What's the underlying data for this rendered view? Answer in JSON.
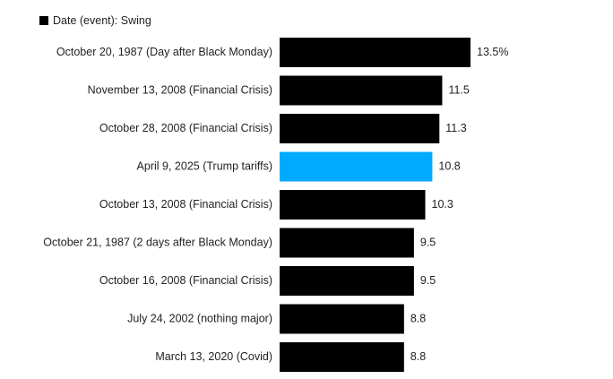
{
  "legend": {
    "label": "Date (event): Swing"
  },
  "colors": {
    "default": "#000000",
    "highlight": "#00aaff"
  },
  "chart_data": {
    "type": "bar",
    "orientation": "horizontal",
    "categories": [
      "October 20, 1987 (Day after Black Monday)",
      "November 13, 2008 (Financial Crisis)",
      "October 28, 2008 (Financial Crisis)",
      "April 9, 2025 (Trump tariffs)",
      "October 13, 2008 (Financial Crisis)",
      "October 21, 1987 (2 days after Black Monday)",
      "October 16, 2008 (Financial Crisis)",
      "July 24, 2002 (nothing major)",
      "March 13, 2020 (Covid)"
    ],
    "values": [
      13.5,
      11.5,
      11.3,
      10.8,
      10.3,
      9.5,
      9.5,
      8.8,
      8.8
    ],
    "value_labels": [
      "13.5%",
      "11.5",
      "11.3",
      "10.8",
      "10.3",
      "9.5",
      "9.5",
      "8.8",
      "8.8"
    ],
    "highlight_index": 3,
    "series": [
      {
        "name": "Swing"
      }
    ],
    "xlim": [
      0,
      13.5
    ],
    "title": "",
    "xlabel": "",
    "ylabel": "",
    "grid": false,
    "legend_position": "top-left"
  }
}
